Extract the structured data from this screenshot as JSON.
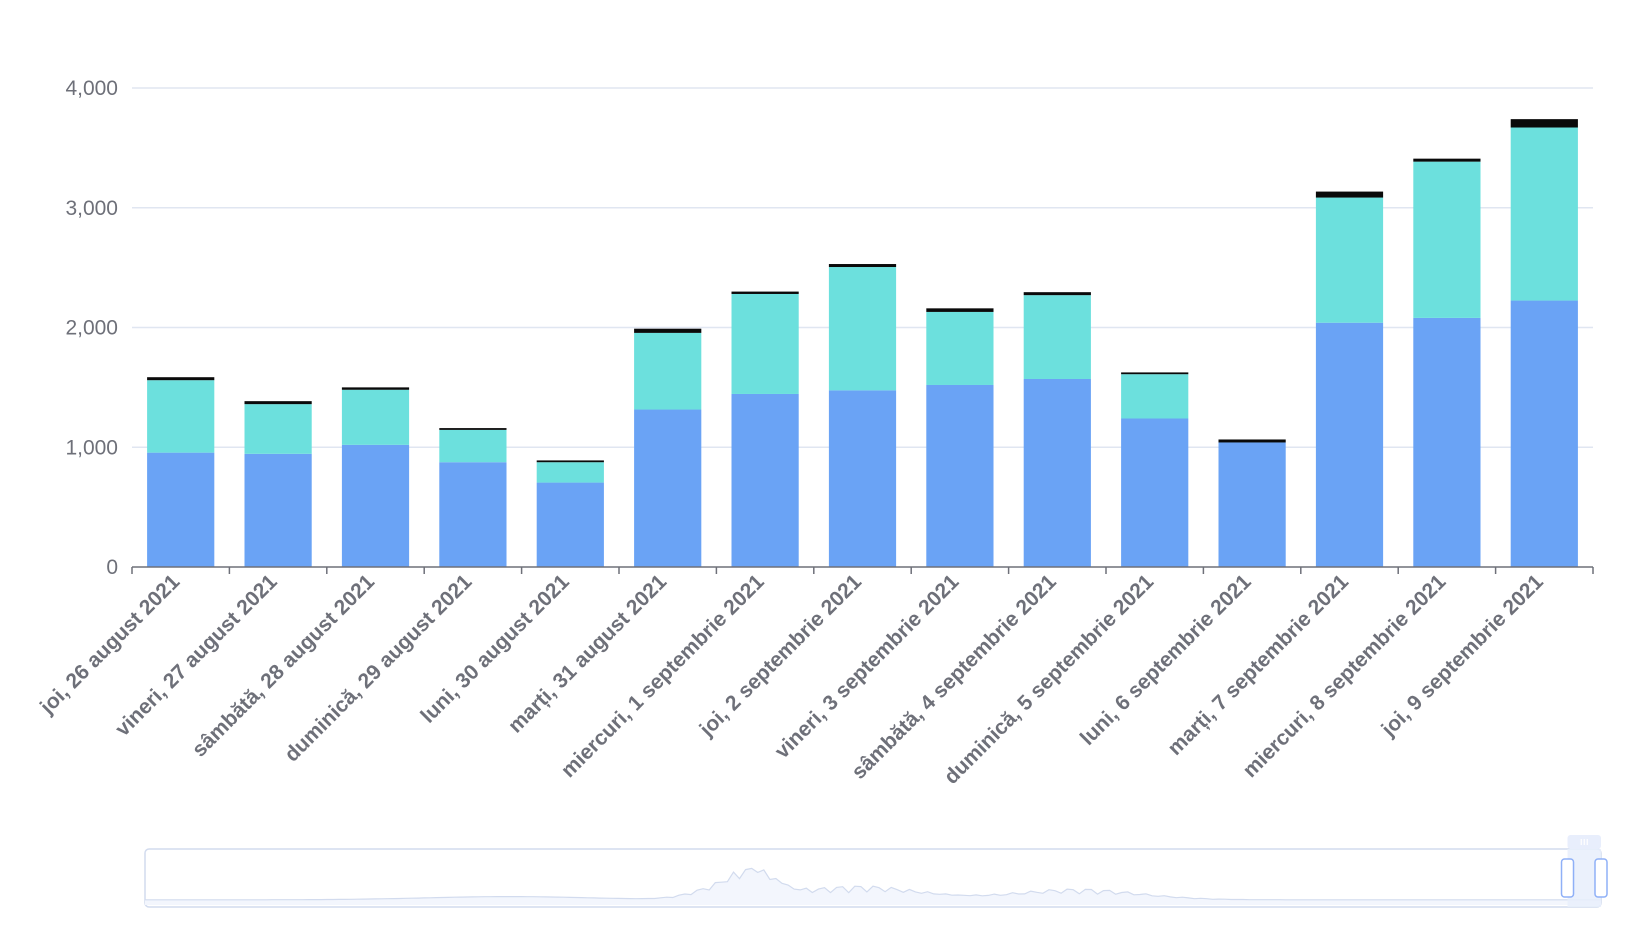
{
  "chart_data": {
    "type": "bar",
    "stacked": true,
    "categories": [
      "joi, 26 august 2021",
      "vineri, 27 august 2021",
      "sâmbătă, 28 august 2021",
      "duminică, 29 august 2021",
      "luni, 30 august 2021",
      "marți, 31 august 2021",
      "miercuri, 1 septembrie 2021",
      "joi, 2 septembrie 2021",
      "vineri, 3 septembrie 2021",
      "sâmbătă, 4 septembrie 2021",
      "duminică, 5 septembrie 2021",
      "luni, 6 septembrie 2021",
      "marți, 7 septembrie 2021",
      "miercuri, 8 septembrie 2021",
      "joi, 9 septembrie 2021"
    ],
    "series": [
      {
        "color": "#6aa3f5",
        "values": [
          955,
          945,
          1020,
          875,
          705,
          1315,
          1445,
          1475,
          1520,
          1570,
          1240,
          1040,
          2040,
          2080,
          2225
        ]
      },
      {
        "color": "#6ce0dd",
        "values": [
          605,
          415,
          460,
          270,
          170,
          640,
          835,
          1030,
          610,
          700,
          370,
          0,
          1045,
          1305,
          1445
        ]
      },
      {
        "color": "#0a0a0a",
        "values": [
          25,
          25,
          20,
          15,
          15,
          35,
          20,
          25,
          30,
          25,
          15,
          25,
          50,
          25,
          70
        ]
      }
    ],
    "yticks": [
      "0",
      "1,000",
      "2,000",
      "3,000",
      "4,000"
    ],
    "ylim": [
      0,
      4000
    ],
    "grid": true,
    "legend": "none",
    "xlabel": "",
    "ylabel": "",
    "title": ""
  },
  "data_zoom": {
    "range": [
      0.977,
      1.0
    ],
    "colors": {
      "border": "#d2dbee",
      "fill": "#e8eefc",
      "line": "#d2dbee",
      "handle": "#ffffff"
    }
  }
}
